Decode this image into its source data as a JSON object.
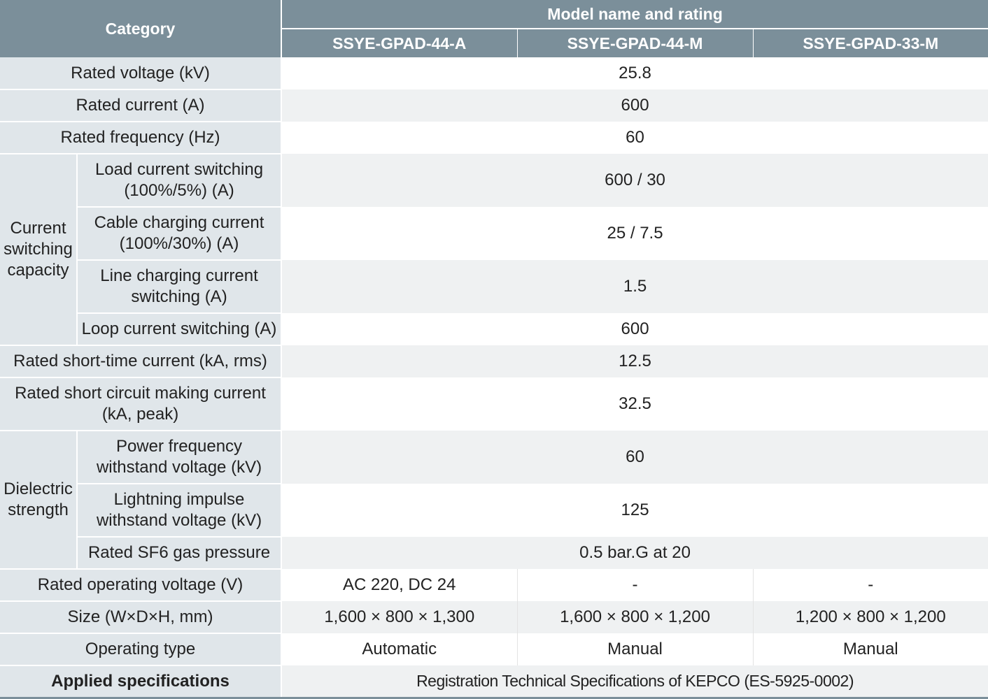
{
  "header": {
    "category": "Category",
    "group": "Model name and rating",
    "models": [
      "SSYE-GPAD-44-A",
      "SSYE-GPAD-44-M",
      "SSYE-GPAD-33-M"
    ]
  },
  "groups": {
    "current_switching": "Current switching capacity",
    "dielectric": "Dielectric strength"
  },
  "rows": {
    "rated_voltage": {
      "label": "Rated voltage (kV)",
      "value": "25.8"
    },
    "rated_current": {
      "label": "Rated current (A)",
      "value": "600"
    },
    "rated_frequency": {
      "label": "Rated frequency (Hz)",
      "value": "60"
    },
    "load_current": {
      "label": "Load current switching (100%/5%) (A)",
      "value": "600 / 30"
    },
    "cable_charging": {
      "label": "Cable charging current (100%/30%) (A)",
      "value": "25 / 7.5"
    },
    "line_charging": {
      "label": "Line charging current switching (A)",
      "value": "1.5"
    },
    "loop_current": {
      "label": "Loop current switching (A)",
      "value": "600"
    },
    "short_time": {
      "label": "Rated short-time current (kA, rms)",
      "value": "12.5"
    },
    "making_current": {
      "label": "Rated short circuit making current (kA, peak)",
      "value": "32.5"
    },
    "power_freq": {
      "label": "Power frequency withstand voltage (kV)",
      "value": "60"
    },
    "lightning": {
      "label": "Lightning impulse withstand voltage (kV)",
      "value": "125"
    },
    "sf6": {
      "label": "Rated SF6 gas pressure",
      "value": "0.5 bar.G at 20"
    },
    "operating_voltage": {
      "label": "Rated operating voltage (V)",
      "values": [
        "AC 220, DC 24",
        "-",
        "-"
      ]
    },
    "size": {
      "label": "Size (W×D×H, mm)",
      "values": [
        "1,600 × 800 × 1,300",
        "1,600 × 800 × 1,200",
        "1,200 × 800 × 1,200"
      ]
    },
    "operating_type": {
      "label": "Operating type",
      "values": [
        "Automatic",
        "Manual",
        "Manual"
      ]
    },
    "applied": {
      "label": "Applied specifications",
      "value": "Registration Technical Specifications of KEPCO (ES-5925-0002)"
    }
  },
  "colors": {
    "header_bg": "#7b8f9a",
    "category_bg": "#e0e6ea",
    "stripe_bg": "#eff1f2"
  }
}
